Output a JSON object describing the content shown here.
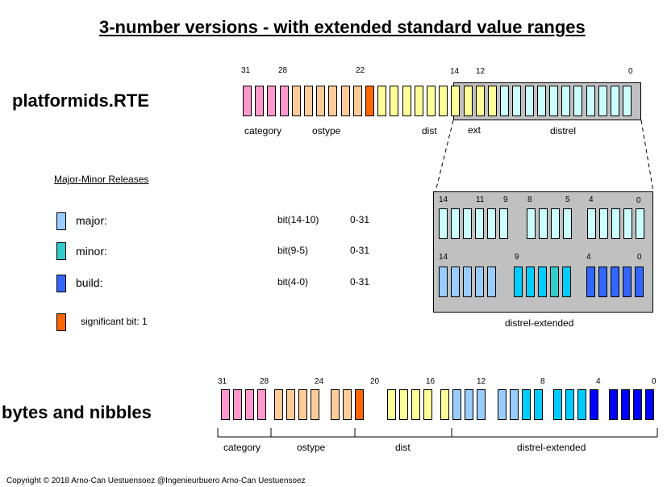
{
  "title": "3-number versions - with extended standard value ranges",
  "section1": {
    "label": "platformids.RTE",
    "bit_numbers": [
      "31",
      "28",
      "22",
      "14",
      "12",
      "0"
    ],
    "field_labels": [
      "category",
      "ostype",
      "dist",
      "ext",
      "distrel"
    ]
  },
  "legend": {
    "heading": "Major-Minor Releases",
    "items": [
      {
        "label": "major:",
        "bits": "bit(14-10)",
        "range": "0-31",
        "color": "#99ccff"
      },
      {
        "label": "minor:",
        "bits": "bit(9-5)",
        "range": "0-31",
        "color": "#33cccc"
      },
      {
        "label": "build:",
        "bits": "bit(4-0)",
        "range": "0-31",
        "color": "#3366ff"
      }
    ],
    "significant": {
      "label": "significant bit: 1",
      "color": "#ff6600"
    }
  },
  "zoom": {
    "top_bit_numbers": [
      "14",
      "11",
      "9",
      "8",
      "5",
      "4",
      "0"
    ],
    "bottom_bit_numbers": [
      "14",
      "9",
      "4",
      "0"
    ],
    "caption": "distrel-extended"
  },
  "section2": {
    "label": "bytes and nibbles",
    "bit_numbers": [
      "31",
      "28",
      "24",
      "20",
      "16",
      "12",
      "8",
      "4",
      "0"
    ],
    "field_labels": [
      "category",
      "ostype",
      "dist",
      "distrel-extended"
    ]
  },
  "copyright": "Copyright © 2018 Arno-Can Uestuensoez @Ingenieurbuero Arno-Can Uestuensoez",
  "colors": {
    "category": "#ff99cc",
    "ostype": "#ffcc99",
    "dist": "#ffff99",
    "significant": "#ff6600",
    "distrel": "#ccffff",
    "major": "#99ccff",
    "minor_light": "#00ccff",
    "minor_teal": "#33cccc",
    "build": "#3366ff",
    "nibble_dark": "#0000ff",
    "gray": "#c0c0c0"
  }
}
